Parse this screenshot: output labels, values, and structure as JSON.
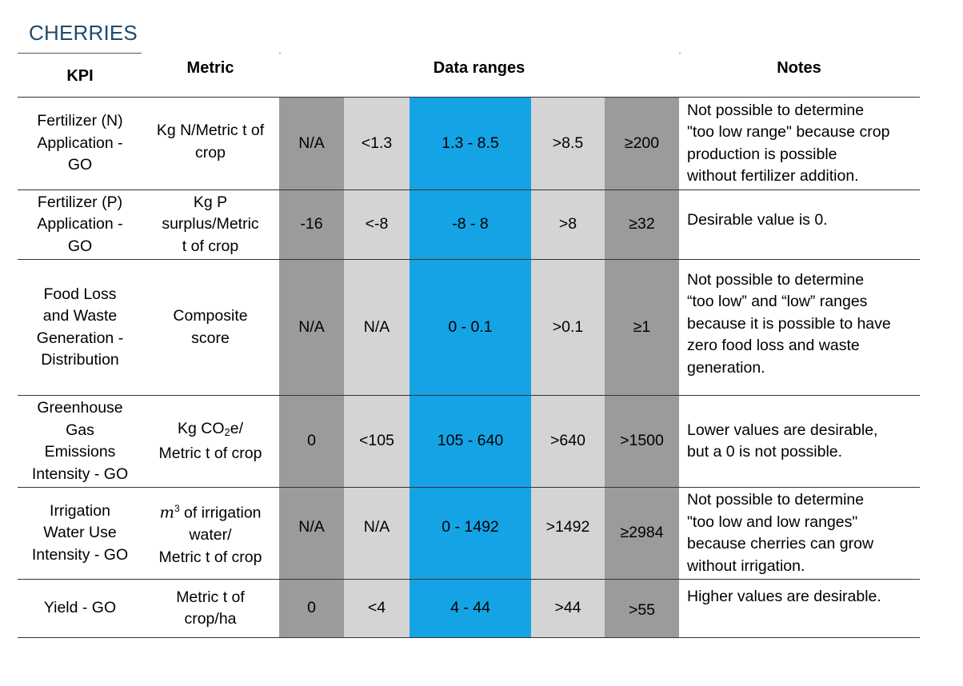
{
  "title": "CHERRIES",
  "headers": {
    "kpi": "KPI",
    "metric": "Metric",
    "ranges": "Data ranges",
    "notes": "Notes"
  },
  "colors": {
    "dark_gray": "#9b9b9b",
    "light_gray": "#d4d4d4",
    "blue": "#14a4e6",
    "title": "#1f4a6e"
  },
  "rows": [
    {
      "kpi": [
        "Fertilizer (N)",
        "Application -",
        "GO"
      ],
      "metric": [
        "Kg N/Metric t of",
        "crop"
      ],
      "ranges": [
        "N/A",
        "<1.3",
        "1.3 - 8.5",
        ">8.5",
        "≥200"
      ],
      "notes": [
        "Not possible to determine",
        "\"too low range\" because crop",
        "production is possible",
        "without fertilizer addition."
      ]
    },
    {
      "kpi": [
        "Fertilizer (P)",
        "Application -",
        "GO"
      ],
      "metric": [
        "Kg P",
        "surplus/Metric",
        "t of crop"
      ],
      "ranges": [
        "-16",
        "<-8",
        "-8 - 8",
        ">8",
        "≥32"
      ],
      "notes": [
        "Desirable value is 0."
      ]
    },
    {
      "kpi": [
        "Food Loss",
        "and Waste",
        "Generation -",
        "Distribution"
      ],
      "metric": [
        "Composite",
        "score"
      ],
      "ranges": [
        "N/A",
        "N/A",
        "0 - 0.1",
        ">0.1",
        "≥1"
      ],
      "notes": [
        "Not possible to determine",
        "“too low” and “low” ranges",
        "because it is possible to have",
        "zero food loss and waste",
        "generation."
      ]
    },
    {
      "kpi": [
        "Greenhouse",
        "Gas",
        "Emissions",
        "Intensity - GO"
      ],
      "metric_prefix": "Kg CO",
      "metric_sub": "2",
      "metric_suffix": "e/",
      "metric_line2": "Metric t of crop",
      "ranges": [
        "0",
        "<105",
        "105 - 640",
        ">640",
        ">1500"
      ],
      "notes": [
        "Lower values are desirable,",
        "but a 0 is not possible."
      ]
    },
    {
      "kpi": [
        "Irrigation",
        "Water Use",
        "Intensity - GO"
      ],
      "metric_var": "m",
      "metric_sup": "3",
      "metric_rest": " of irrigation",
      "metric_line2": "water/",
      "metric_line3": "Metric t of crop",
      "ranges": [
        "N/A",
        "N/A",
        "0 - 1492",
        ">1492",
        "≥2984"
      ],
      "notes": [
        "Not possible to determine",
        "\"too low and low ranges\"",
        "because cherries can grow",
        "without irrigation."
      ]
    },
    {
      "kpi": [
        "Yield - GO"
      ],
      "metric": [
        "Metric t of",
        "crop/ha"
      ],
      "ranges": [
        "0",
        "<4",
        "4 - 44",
        ">44",
        ">55"
      ],
      "notes": [
        "Higher values are desirable."
      ]
    }
  ]
}
